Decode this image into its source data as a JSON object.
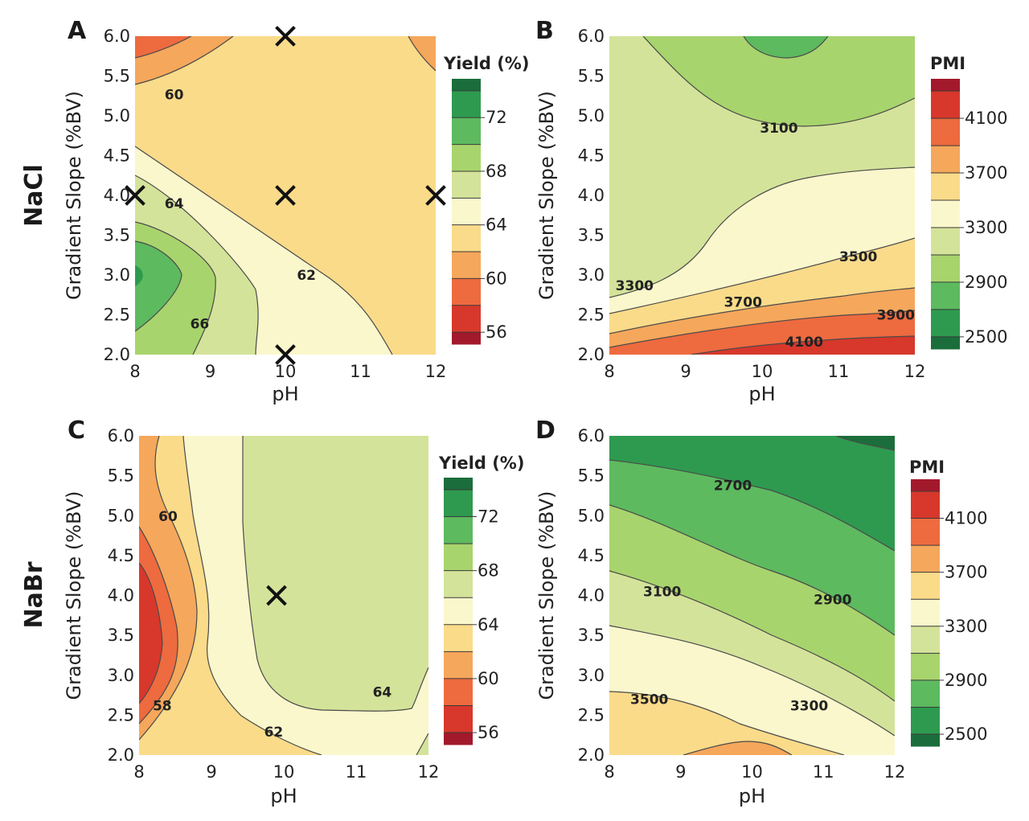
{
  "row_labels": [
    "NaCl",
    "NaBr"
  ],
  "chart_data": [
    {
      "panel": "A",
      "type": "contour",
      "salt": "NaCl",
      "xlabel": "pH",
      "ylabel": "Gradient Slope (%BV)",
      "xlim": [
        8,
        12
      ],
      "ylim": [
        2.0,
        6.0
      ],
      "xticks": [
        "8",
        "9",
        "10",
        "11",
        "12"
      ],
      "yticks": [
        "2.0",
        "2.5",
        "3.0",
        "3.5",
        "4.0",
        "4.5",
        "5.0",
        "5.5",
        "6.0"
      ],
      "colorbar": {
        "title": "Yield (%)",
        "ticks": [
          "72",
          "68",
          "64",
          "60",
          "56"
        ],
        "colors": [
          "#1b6e3b",
          "#2e9a4f",
          "#5dba5f",
          "#a8d46d",
          "#d4e39a",
          "#fbf7cc",
          "#fadb8a",
          "#f5a75b",
          "#ee6a3f",
          "#d7382b",
          "#a3192c"
        ]
      },
      "design_points": [
        {
          "x": 10,
          "y": 6.0
        },
        {
          "x": 8,
          "y": 4.0
        },
        {
          "x": 10,
          "y": 4.0
        },
        {
          "x": 12,
          "y": 4.0
        },
        {
          "x": 10,
          "y": 2.0
        }
      ],
      "contour_labels": [
        {
          "text": "60",
          "x": 8.52,
          "y": 5.27
        },
        {
          "text": "64",
          "x": 8.52,
          "y": 3.9
        },
        {
          "text": "62",
          "x": 10.28,
          "y": 3.0
        },
        {
          "text": "66",
          "x": 8.86,
          "y": 2.39
        }
      ]
    },
    {
      "panel": "B",
      "type": "contour",
      "salt": "NaCl",
      "xlabel": "pH",
      "ylabel": "Gradient Slope (%BV)",
      "xlim": [
        8,
        12
      ],
      "ylim": [
        2.0,
        6.0
      ],
      "xticks": [
        "8",
        "9",
        "10",
        "11",
        "12"
      ],
      "yticks": [
        "2.0",
        "2.5",
        "3.0",
        "3.5",
        "4.0",
        "4.5",
        "5.0",
        "5.5",
        "6.0"
      ],
      "colorbar": {
        "title": "PMI",
        "ticks": [
          "4100",
          "3700",
          "3300",
          "2900",
          "2500"
        ],
        "colors": [
          "#a3192c",
          "#d7382b",
          "#ee6a3f",
          "#f5a75b",
          "#fadb8a",
          "#fbf7cc",
          "#d4e39a",
          "#a8d46d",
          "#5dba5f",
          "#2e9a4f",
          "#1b6e3b"
        ]
      },
      "design_points": [],
      "contour_labels": [
        {
          "text": "3100",
          "x": 10.22,
          "y": 4.85
        },
        {
          "text": "3500",
          "x": 11.26,
          "y": 3.23
        },
        {
          "text": "3300",
          "x": 8.33,
          "y": 2.87
        },
        {
          "text": "3700",
          "x": 9.75,
          "y": 2.66
        },
        {
          "text": "3900",
          "x": 11.75,
          "y": 2.5
        },
        {
          "text": "4100",
          "x": 10.55,
          "y": 2.16
        }
      ]
    },
    {
      "panel": "C",
      "type": "contour",
      "salt": "NaBr",
      "xlabel": "pH",
      "ylabel": "Gradient Slope (%BV)",
      "xlim": [
        8,
        12
      ],
      "ylim": [
        2.0,
        6.0
      ],
      "xticks": [
        "8",
        "9",
        "10",
        "11",
        "12"
      ],
      "yticks": [
        "2.0",
        "2.5",
        "3.0",
        "3.5",
        "4.0",
        "4.5",
        "5.0",
        "5.5",
        "6.0"
      ],
      "colorbar": {
        "title": "Yield (%)",
        "ticks": [
          "72",
          "68",
          "64",
          "60",
          "56"
        ],
        "colors": [
          "#1b6e3b",
          "#2e9a4f",
          "#5dba5f",
          "#a8d46d",
          "#d4e39a",
          "#fbf7cc",
          "#fadb8a",
          "#f5a75b",
          "#ee6a3f",
          "#d7382b",
          "#a3192c"
        ]
      },
      "design_points": [
        {
          "x": 9.9,
          "y": 4.0
        }
      ],
      "contour_labels": [
        {
          "text": "60",
          "x": 8.4,
          "y": 4.99
        },
        {
          "text": "64",
          "x": 11.36,
          "y": 2.79
        },
        {
          "text": "58",
          "x": 8.32,
          "y": 2.62
        },
        {
          "text": "62",
          "x": 9.86,
          "y": 2.29
        }
      ]
    },
    {
      "panel": "D",
      "type": "contour",
      "salt": "NaBr",
      "xlabel": "pH",
      "ylabel": "Gradient Slope (%BV)",
      "xlim": [
        8,
        12
      ],
      "ylim": [
        2.0,
        6.0
      ],
      "xticks": [
        "8",
        "9",
        "10",
        "11",
        "12"
      ],
      "yticks": [
        "2.0",
        "2.5",
        "3.0",
        "3.5",
        "4.0",
        "4.5",
        "5.0",
        "5.5",
        "6.0"
      ],
      "colorbar": {
        "title": "PMI",
        "ticks": [
          "4100",
          "3700",
          "3300",
          "2900",
          "2500"
        ],
        "colors": [
          "#a3192c",
          "#d7382b",
          "#ee6a3f",
          "#f5a75b",
          "#fadb8a",
          "#fbf7cc",
          "#d4e39a",
          "#a8d46d",
          "#5dba5f",
          "#2e9a4f",
          "#1b6e3b"
        ]
      },
      "design_points": [],
      "contour_labels": [
        {
          "text": "2700",
          "x": 9.73,
          "y": 5.38
        },
        {
          "text": "3100",
          "x": 8.74,
          "y": 4.05
        },
        {
          "text": "2900",
          "x": 11.13,
          "y": 3.95
        },
        {
          "text": "3500",
          "x": 8.56,
          "y": 2.7
        },
        {
          "text": "3300",
          "x": 10.8,
          "y": 2.62
        }
      ]
    }
  ]
}
